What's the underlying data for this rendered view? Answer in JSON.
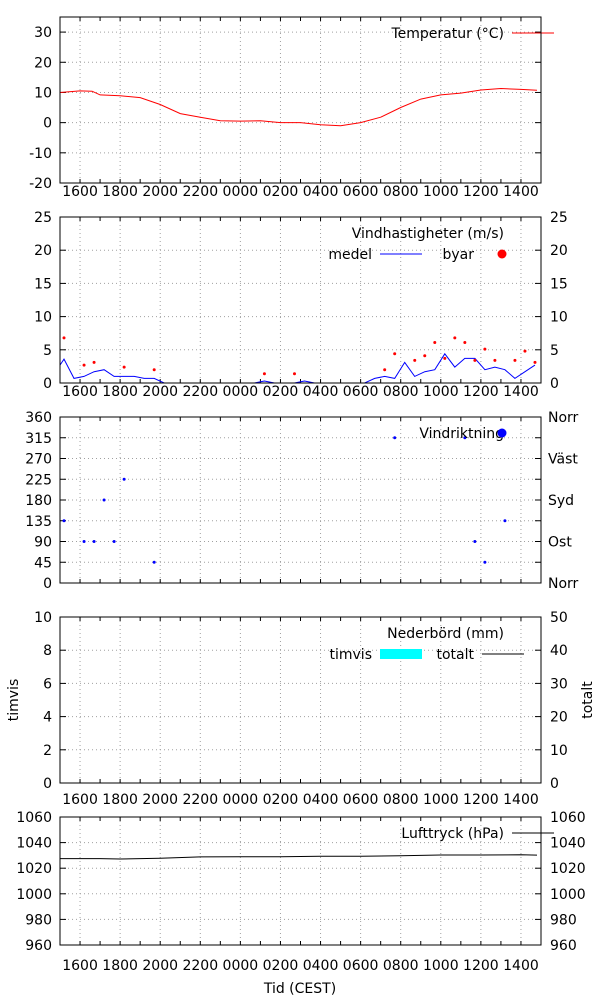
{
  "chart_data": [
    {
      "type": "line",
      "id": "temp",
      "xlabel": "",
      "x_unit": "hours after 15:00",
      "xlim": [
        0,
        24
      ],
      "ylim": [
        -20,
        35
      ],
      "yticks": [
        -20,
        -10,
        0,
        10,
        20,
        30
      ],
      "xtick_labels": [
        "1600",
        "1800",
        "2000",
        "2200",
        "0000",
        "0200",
        "0400",
        "0600",
        "0800",
        "1000",
        "1200",
        "1400"
      ],
      "show_xticks": true,
      "legend_position": "top-right",
      "series": [
        {
          "name": "Temperatur (°C)",
          "style": "line",
          "color": "#ff0000",
          "x": [
            0,
            1,
            1.6,
            2,
            3,
            4,
            5,
            6,
            7,
            8,
            9,
            10,
            11,
            12,
            13,
            14,
            15,
            16,
            17,
            18,
            19,
            20,
            21,
            22,
            23,
            23.8
          ],
          "y": [
            10.0,
            10.5,
            10.4,
            9.2,
            8.9,
            8.3,
            6.0,
            3.0,
            1.8,
            0.6,
            0.5,
            0.6,
            0.0,
            0.0,
            -0.7,
            -1.0,
            0.0,
            1.8,
            5.0,
            7.8,
            9.2,
            9.8,
            10.8,
            11.3,
            11.0,
            10.7
          ]
        }
      ]
    },
    {
      "type": "line",
      "id": "wind",
      "title": "Vindhastigheter (m/s)",
      "xlim": [
        0,
        24
      ],
      "ylim": [
        0,
        25
      ],
      "yticks": [
        0,
        5,
        10,
        15,
        20,
        25
      ],
      "right_yticks": [
        "0",
        "5",
        "10",
        "15",
        "20",
        "25"
      ],
      "xtick_labels": [
        "1600",
        "1800",
        "2000",
        "2200",
        "0000",
        "0200",
        "0400",
        "0600",
        "0800",
        "1000",
        "1200",
        "1400"
      ],
      "show_xticks": true,
      "legend_position": "top-right",
      "series": [
        {
          "name": "medel",
          "style": "line",
          "color": "#0000ff",
          "x": [
            0,
            0.2,
            0.7,
            1.2,
            1.7,
            2.2,
            2.7,
            3.2,
            3.7,
            4.2,
            4.7,
            5.2,
            9.7,
            10.2,
            10.7,
            11.7,
            12.2,
            12.7,
            15.2,
            15.7,
            16.2,
            16.7,
            17.2,
            17.7,
            18.2,
            18.7,
            19.2,
            19.7,
            20.2,
            20.7,
            21.2,
            21.7,
            22.2,
            22.7,
            23.2,
            23.7
          ],
          "y": [
            2.7,
            3.6,
            0.7,
            1.0,
            1.7,
            2.0,
            1.0,
            1.0,
            1.0,
            0.7,
            0.7,
            0,
            0,
            0.3,
            0,
            0,
            0.3,
            0,
            0,
            0.7,
            1.0,
            0.7,
            3.1,
            1.0,
            1.7,
            2.0,
            4.4,
            2.4,
            3.7,
            3.7,
            2.0,
            2.4,
            2.0,
            0.7,
            1.7,
            2.7
          ]
        },
        {
          "name": "byar",
          "style": "points",
          "color": "#ff0000",
          "x": [
            0.2,
            1.2,
            1.7,
            3.2,
            4.7,
            10.2,
            11.7,
            16.2,
            16.7,
            17.7,
            18.2,
            18.7,
            19.2,
            19.7,
            20.2,
            20.7,
            21.2,
            21.7,
            22.7,
            23.2,
            23.7
          ],
          "y": [
            6.8,
            2.7,
            3.1,
            2.4,
            2.0,
            1.4,
            1.4,
            2.0,
            4.4,
            3.4,
            4.1,
            6.1,
            3.7,
            6.8,
            6.1,
            3.4,
            5.1,
            3.4,
            3.4,
            4.8,
            3.1
          ]
        }
      ]
    },
    {
      "type": "scatter",
      "id": "dir",
      "xlim": [
        0,
        24
      ],
      "ylim": [
        0,
        360
      ],
      "yticks": [
        0,
        45,
        90,
        135,
        180,
        225,
        270,
        315,
        360
      ],
      "right_labels": [
        {
          "v": 0,
          "t": "Norr"
        },
        {
          "v": 90,
          "t": "Ost"
        },
        {
          "v": 180,
          "t": "Syd"
        },
        {
          "v": 270,
          "t": "Väst"
        },
        {
          "v": 360,
          "t": "Norr"
        }
      ],
      "show_xticks": false,
      "legend_position": "top-right",
      "series": [
        {
          "name": "Vindriktning",
          "style": "points",
          "color": "#0000ff",
          "x": [
            0.2,
            1.2,
            1.7,
            2.2,
            2.7,
            3.2,
            4.7,
            16.7,
            20.2,
            20.7,
            21.2,
            22.2
          ],
          "y": [
            135,
            90,
            90,
            180,
            90,
            225,
            45,
            315,
            315,
            90,
            45,
            135
          ]
        }
      ]
    },
    {
      "type": "bar",
      "id": "rain",
      "title": "Nederbörd (mm)",
      "ylabel": "timvis",
      "ylabel_right": "totalt",
      "xlim": [
        0,
        24
      ],
      "ylim": [
        0,
        10
      ],
      "yticks": [
        0,
        2,
        4,
        6,
        8,
        10
      ],
      "right_yticks": [
        "0",
        "10",
        "20",
        "30",
        "40",
        "50"
      ],
      "xtick_labels": [
        "1600",
        "1800",
        "2000",
        "2200",
        "0000",
        "0200",
        "0400",
        "0600",
        "0800",
        "1000",
        "1200",
        "1400"
      ],
      "show_xticks": true,
      "legend_position": "top-right",
      "series": [
        {
          "name": "timvis",
          "style": "box",
          "color": "#00ffff",
          "x": [],
          "y": []
        },
        {
          "name": "totalt",
          "style": "line",
          "color": "#000000",
          "x": [],
          "y": []
        }
      ]
    },
    {
      "type": "line",
      "id": "pressure",
      "xlabel": "Tid (CEST)",
      "xlim": [
        0,
        24
      ],
      "ylim": [
        960,
        1060
      ],
      "yticks": [
        960,
        980,
        1000,
        1020,
        1040,
        1060
      ],
      "right_yticks": [
        "960",
        "980",
        "1000",
        "1020",
        "1040",
        "1060"
      ],
      "xtick_labels": [
        "1600",
        "1800",
        "2000",
        "2200",
        "0000",
        "0200",
        "0400",
        "0600",
        "0800",
        "1000",
        "1200",
        "1400"
      ],
      "show_xticks": true,
      "legend_position": "top-right",
      "series": [
        {
          "name": "Lufttryck (hPa)",
          "style": "line",
          "color": "#000000",
          "x": [
            0,
            2,
            3,
            5,
            7,
            9,
            11,
            13,
            15,
            17,
            19,
            21,
            23,
            23.8
          ],
          "y": [
            1027.5,
            1027.5,
            1027.2,
            1027.8,
            1028.8,
            1029.0,
            1029.0,
            1029.3,
            1029.3,
            1029.8,
            1030.3,
            1030.3,
            1030.5,
            1030.2
          ]
        }
      ]
    }
  ]
}
